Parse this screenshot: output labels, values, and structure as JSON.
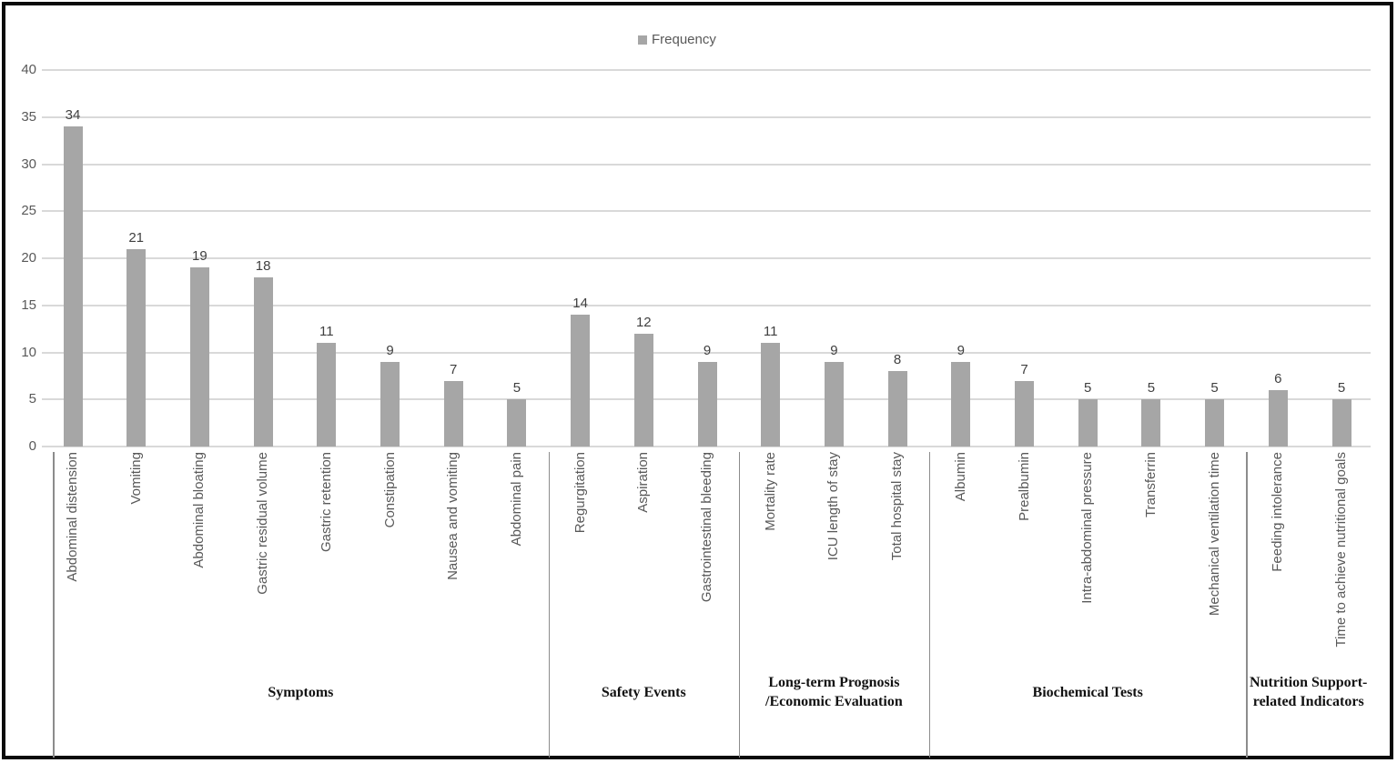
{
  "chart_data": {
    "type": "bar",
    "title": "",
    "legend": [
      "Frequency"
    ],
    "legend_position": "top-center",
    "grid": true,
    "ylim": [
      0,
      40
    ],
    "yticks": [
      0,
      5,
      10,
      15,
      20,
      25,
      30,
      35,
      40
    ],
    "bar_color": "#a6a6a6",
    "groups": [
      {
        "label": "Symptoms",
        "items": [
          {
            "label": "Abdominal distension",
            "value": 34
          },
          {
            "label": "Vomiting",
            "value": 21
          },
          {
            "label": "Abdominal bloating",
            "value": 19
          },
          {
            "label": "Gastric residual volume",
            "value": 18
          },
          {
            "label": "Gastric retention",
            "value": 11
          },
          {
            "label": "Constipation",
            "value": 9
          },
          {
            "label": "Nausea and vomiting",
            "value": 7
          },
          {
            "label": "Abdominal pain",
            "value": 5
          }
        ]
      },
      {
        "label": "Safety Events",
        "items": [
          {
            "label": "Regurgitation",
            "value": 14
          },
          {
            "label": "Aspiration",
            "value": 12
          },
          {
            "label": "Gastrointestinal bleeding",
            "value": 9
          }
        ]
      },
      {
        "label": "Long-term Prognosis /Economic Evaluation",
        "items": [
          {
            "label": "Mortality rate",
            "value": 11
          },
          {
            "label": "ICU length of stay",
            "value": 9
          },
          {
            "label": "Total hospital stay",
            "value": 8
          }
        ]
      },
      {
        "label": "Biochemical Tests",
        "items": [
          {
            "label": "Albumin",
            "value": 9
          },
          {
            "label": "Prealbumin",
            "value": 7
          },
          {
            "label": "Intra-abdominal pressure",
            "value": 5
          },
          {
            "label": "Transferrin",
            "value": 5
          },
          {
            "label": "Mechanical ventilation time",
            "value": 5
          }
        ]
      },
      {
        "label": "Nutrition Support-related Indicators",
        "items": [
          {
            "label": "Feeding intolerance",
            "value": 6
          },
          {
            "label": "Time to achieve nutritional goals",
            "value": 5
          }
        ]
      }
    ]
  }
}
